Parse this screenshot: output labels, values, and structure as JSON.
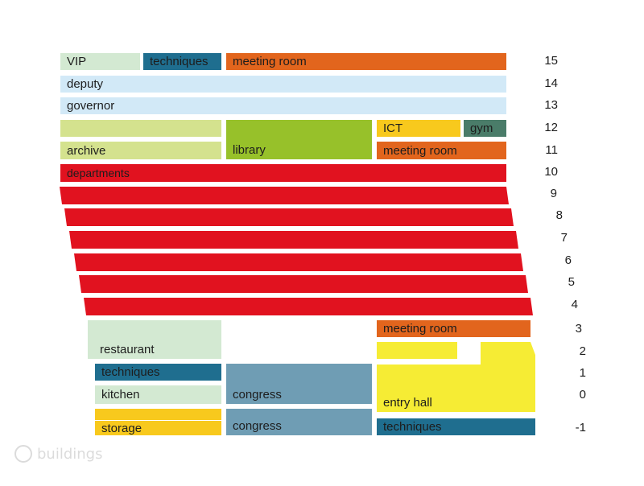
{
  "colors": {
    "light_green": "#d3e9d2",
    "dark_blue": "#1f6e8f",
    "orange": "#e2651d",
    "light_blue": "#d2e9f7",
    "yellow_green": "#d4e28e",
    "lime": "#97c12a",
    "amber": "#f8c91d",
    "dark_green": "#4a7c69",
    "red": "#e1121f",
    "steel_blue": "#6f9db4",
    "yellow": "#f6ec34"
  },
  "blocks": [
    {
      "id": "vip",
      "label": "VIP",
      "color": "light_green"
    },
    {
      "id": "techniques-15",
      "label": "techniques",
      "color": "dark_blue"
    },
    {
      "id": "meeting-room-15",
      "label": "meeting room",
      "color": "orange"
    },
    {
      "id": "deputy",
      "label": "deputy",
      "color": "light_blue"
    },
    {
      "id": "governor",
      "label": "governor",
      "color": "light_blue"
    },
    {
      "id": "archive-12",
      "label": "",
      "color": "yellow_green"
    },
    {
      "id": "archive",
      "label": "archive",
      "color": "yellow_green"
    },
    {
      "id": "library",
      "label": "library",
      "color": "lime"
    },
    {
      "id": "ict",
      "label": "ICT",
      "color": "amber"
    },
    {
      "id": "gym",
      "label": "gym",
      "color": "dark_green"
    },
    {
      "id": "meeting-room-11",
      "label": "meeting room",
      "color": "orange"
    },
    {
      "id": "departments",
      "label": "departments",
      "color": "red"
    },
    {
      "id": "dept-9",
      "label": "",
      "color": "red"
    },
    {
      "id": "dept-8",
      "label": "",
      "color": "red"
    },
    {
      "id": "dept-7",
      "label": "",
      "color": "red"
    },
    {
      "id": "dept-6",
      "label": "",
      "color": "red"
    },
    {
      "id": "dept-5",
      "label": "",
      "color": "red"
    },
    {
      "id": "dept-4",
      "label": "",
      "color": "red"
    },
    {
      "id": "restaurant",
      "label": "restaurant",
      "color": "light_green"
    },
    {
      "id": "meeting-room-3",
      "label": "meeting room",
      "color": "orange"
    },
    {
      "id": "yellow-2",
      "label": "",
      "color": "yellow"
    },
    {
      "id": "techniques-1",
      "label": "techniques",
      "color": "dark_blue"
    },
    {
      "id": "congress-0",
      "label": "congress",
      "color": "steel_blue"
    },
    {
      "id": "kitchen",
      "label": "kitchen",
      "color": "light_green"
    },
    {
      "id": "entry-hall",
      "label": "entry hall",
      "color": "yellow"
    },
    {
      "id": "storage",
      "label": "storage",
      "color": "amber"
    },
    {
      "id": "congress-m1",
      "label": "congress",
      "color": "steel_blue"
    },
    {
      "id": "techniques-m1",
      "label": "techniques",
      "color": "dark_blue"
    }
  ],
  "floors": [
    "15",
    "14",
    "13",
    "12",
    "11",
    "10",
    "9",
    "8",
    "7",
    "6",
    "5",
    "4",
    "3",
    "2",
    "1",
    "0",
    "-1"
  ],
  "watermark": "buildings"
}
